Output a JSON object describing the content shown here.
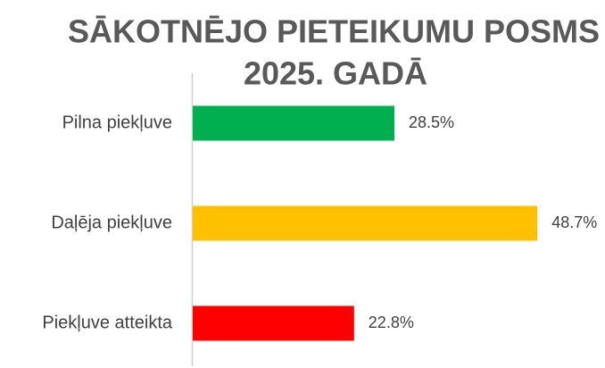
{
  "chart_data": {
    "type": "hbar",
    "title": [
      "SĀKOTNĒJO PIETEIKUMU POSMS",
      "2025. GADĀ"
    ],
    "categories": [
      "Pilna piekļuve",
      "Daļēja piekļuve",
      "Piekļuve atteikta"
    ],
    "values": [
      28.5,
      48.7,
      22.8
    ],
    "value_labels": [
      "28.5%",
      "48.7%",
      "22.8%"
    ],
    "colors": [
      "#00b050",
      "#ffc000",
      "#ff0000"
    ]
  }
}
